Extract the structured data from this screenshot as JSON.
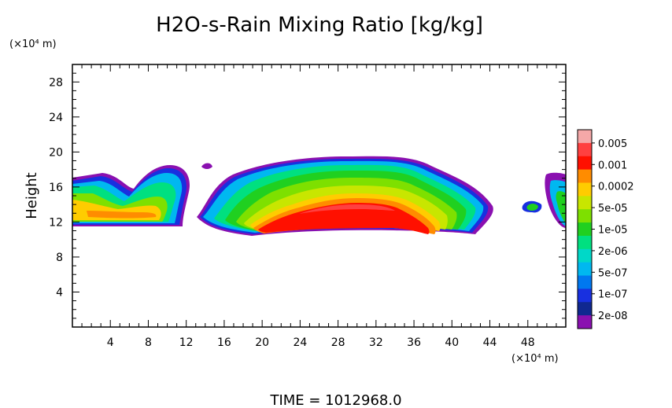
{
  "chart_data": {
    "type": "heatmap",
    "title": "H2O-s-Rain Mixing Ratio [kg/kg]",
    "ylabel": "Height",
    "x_unit_label": "(×10⁴ m)",
    "y_unit_label": "(×10⁴ m)",
    "xlim": [
      0,
      52
    ],
    "ylim": [
      0,
      30
    ],
    "x_ticks": [
      4,
      8,
      12,
      16,
      20,
      24,
      28,
      32,
      36,
      40,
      44,
      48
    ],
    "y_ticks": [
      4,
      8,
      12,
      16,
      20,
      24,
      28
    ],
    "colorbar": {
      "scale": "log",
      "labels": [
        "0.005",
        "0.001",
        "0.0002",
        "5e-05",
        "1e-05",
        "2e-06",
        "5e-07",
        "1e-07",
        "2e-08"
      ],
      "colors": [
        "#f5a8a8",
        "#ff4040",
        "#ff1000",
        "#ff8c00",
        "#ffcc00",
        "#c8e600",
        "#7ee000",
        "#20d020",
        "#00e080",
        "#00d8c8",
        "#00b8f0",
        "#0078f0",
        "#1830e0",
        "#102890",
        "#8a10b0"
      ]
    },
    "footer": "TIME = 1012968.0"
  }
}
